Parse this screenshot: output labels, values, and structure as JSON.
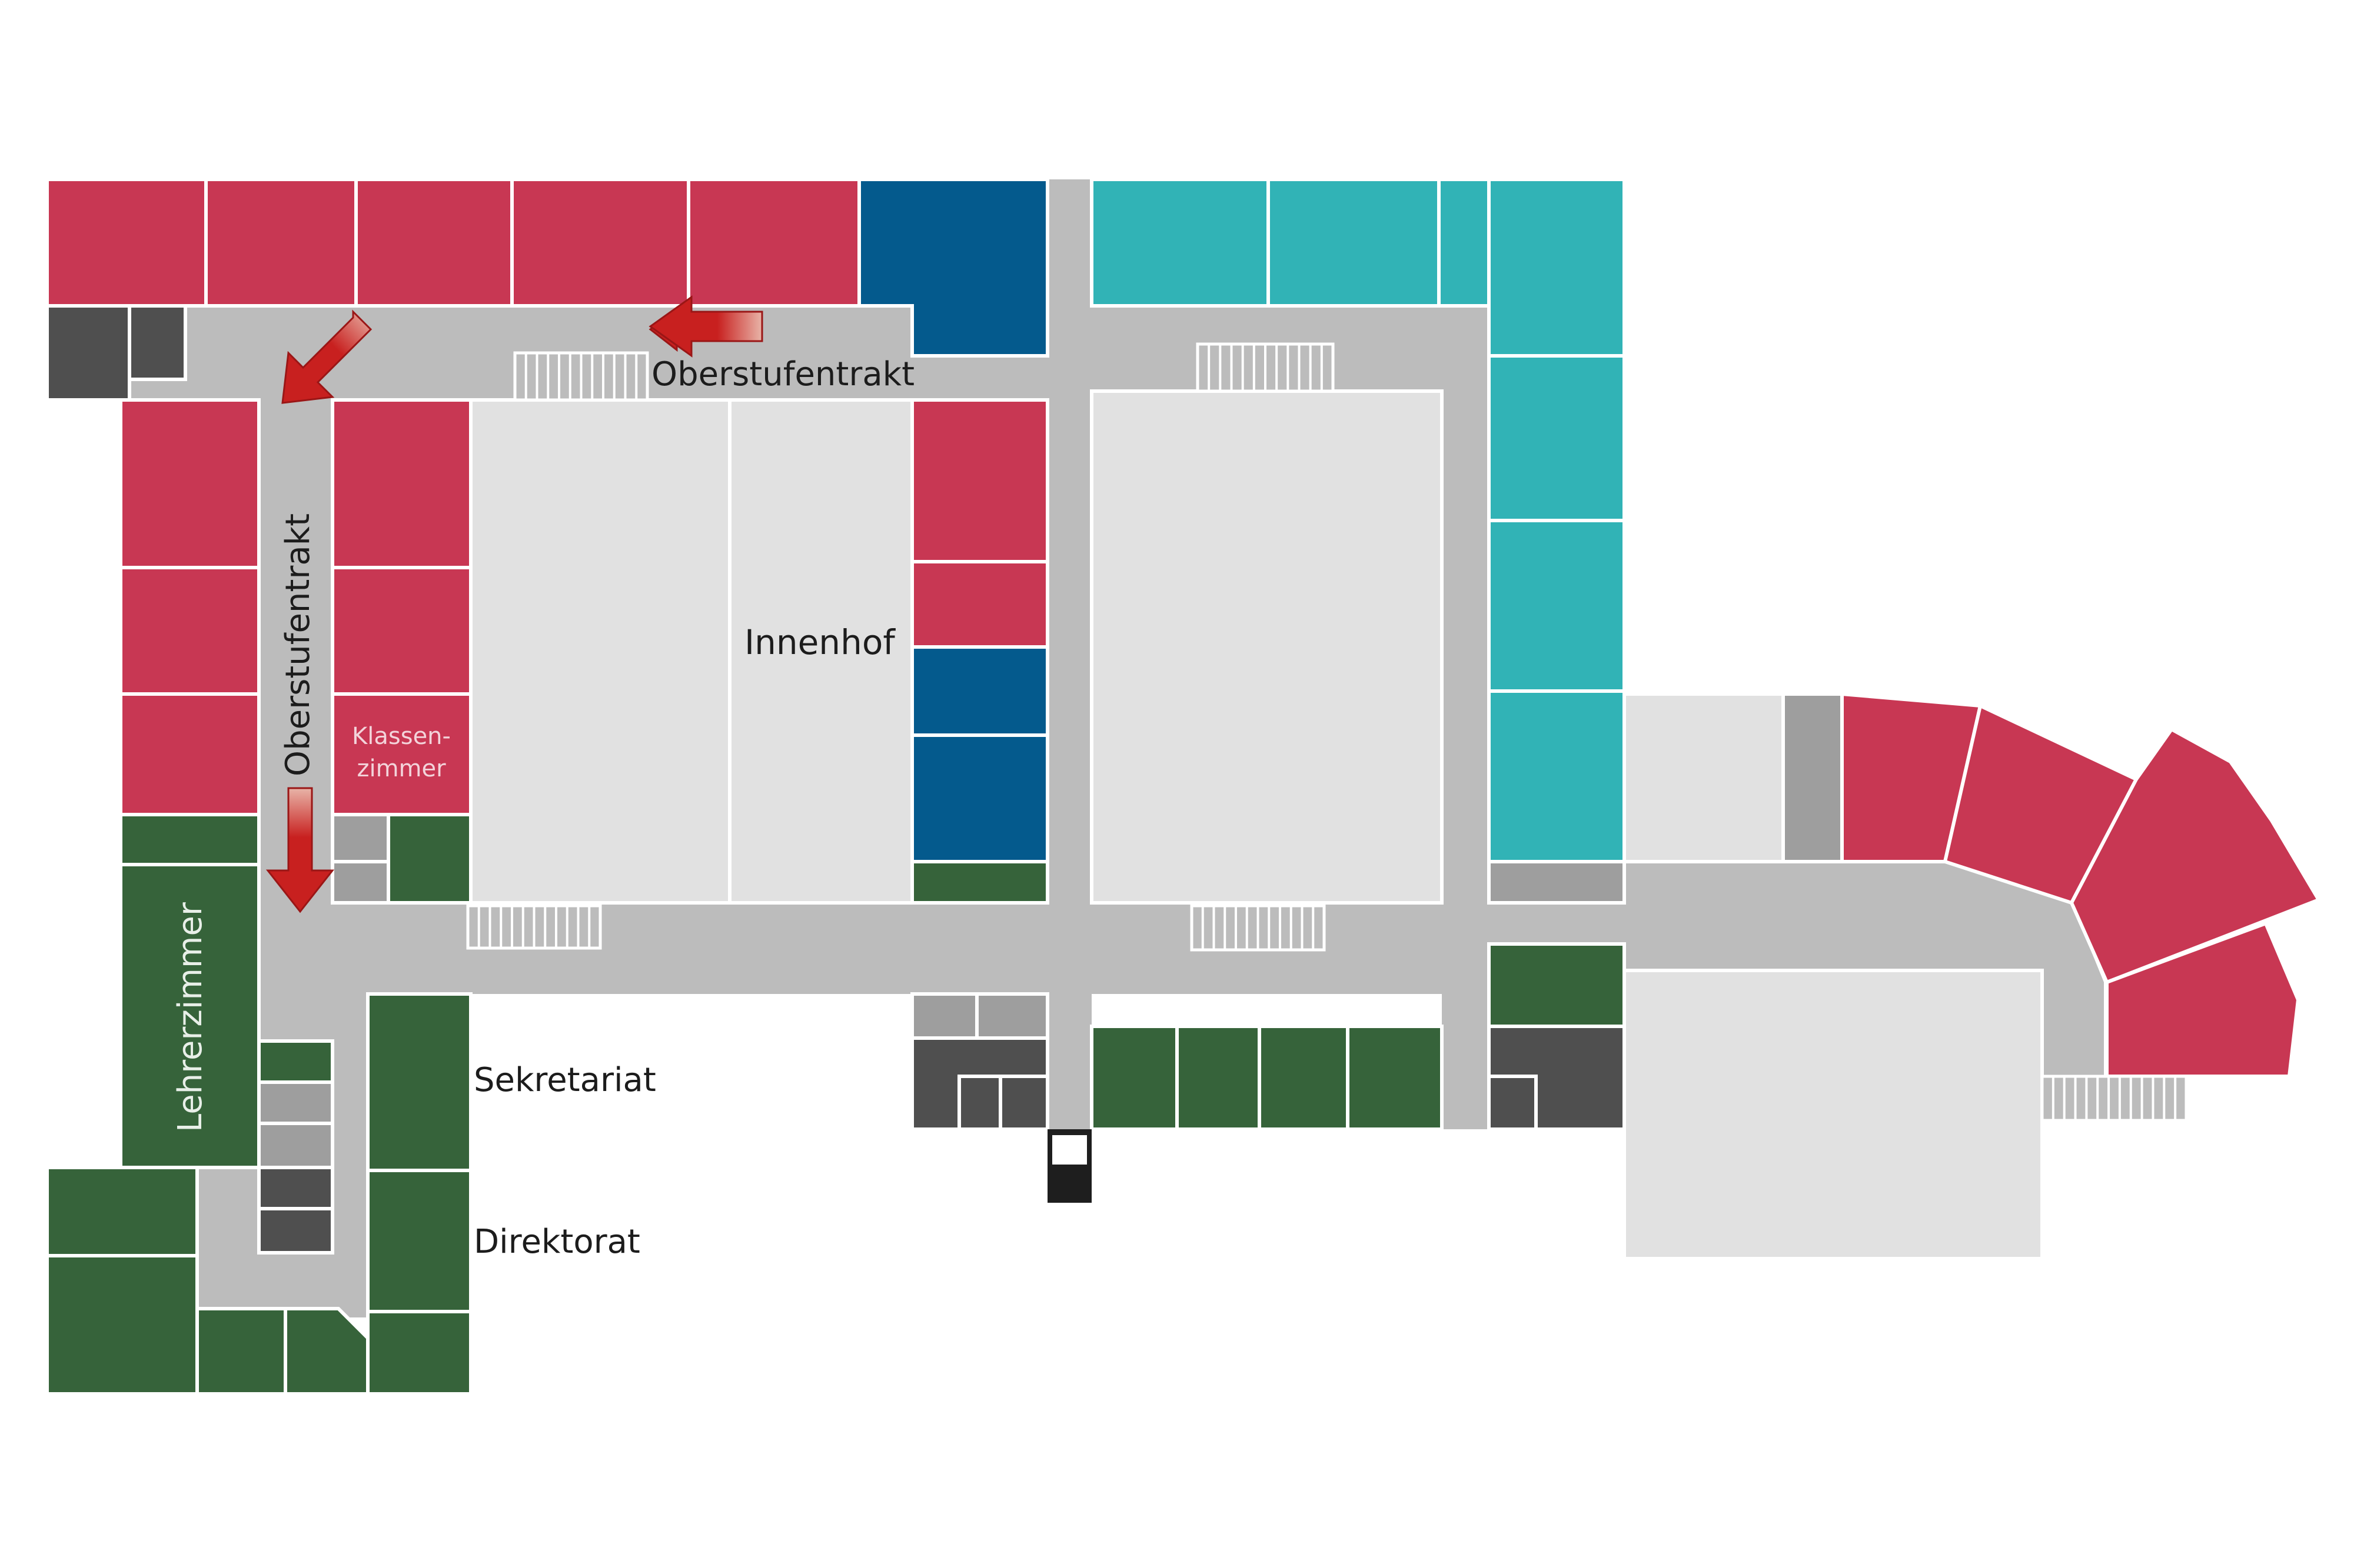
{
  "labels": {
    "oberstufentrakt_top": "Oberstufentrakt",
    "oberstufentrakt_side": "Oberstufentrakt",
    "innenhof": "Innenhof",
    "klassenzimmer_line1": "Klassen-",
    "klassenzimmer_line2": "zimmer",
    "lehrerzimmer": "Lehrerzimmer",
    "sekretariat": "Sekretariat",
    "direktorat": "Direktorat"
  },
  "colors": {
    "classroom_red": "#c83753",
    "dark_blue": "#045a8d",
    "teal": "#31b3b6",
    "dark_green": "#36633a",
    "dark_gray": "#4f4f4f",
    "mid_gray": "#9e9e9e",
    "corridor_gray": "#bcbcbc",
    "courtyard_light_gray": "#e1e1e1",
    "black": "#1e1e1e",
    "arrow_red": "#c8201f"
  },
  "icons": [
    "arrow-left-icon",
    "arrow-down-left-icon",
    "arrow-down-icon",
    "stairs-icon"
  ]
}
